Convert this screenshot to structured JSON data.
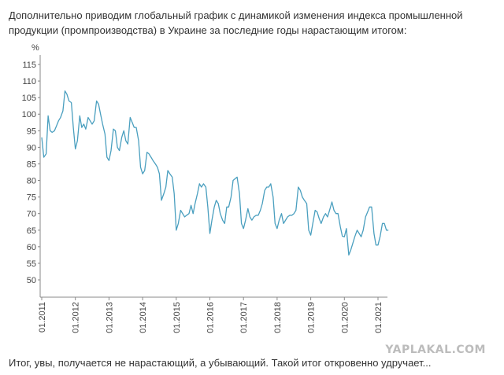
{
  "intro_text": "Дополнительно приводим глобальный график с динамикой изменения индекса промышленной продукции (промпроизводства) в Украине за последние годы нарастающим итогом:",
  "outro_text": "Итог, увы, получается не нарастающий, а убывающий. Такой итог откровенно удручает...",
  "watermark": "YAPLAKAL.COM",
  "colors": {
    "line": "#4a9fbf",
    "axis": "#888888",
    "text": "#444444"
  },
  "chart_data": {
    "type": "line",
    "ylabel": "%",
    "ylim": [
      45,
      116
    ],
    "yticks": [
      115,
      110,
      105,
      100,
      95,
      90,
      85,
      80,
      75,
      70,
      65,
      60,
      55,
      50
    ],
    "xlim": [
      2011.0,
      2021.55
    ],
    "xticks": [
      {
        "label": "01.2011",
        "x": 2011.0
      },
      {
        "label": "01.2012",
        "x": 2012.0
      },
      {
        "label": "01.2013",
        "x": 2013.0
      },
      {
        "label": "01.2014",
        "x": 2014.0
      },
      {
        "label": "01.2015",
        "x": 2015.0
      },
      {
        "label": "01.2016",
        "x": 2016.0
      },
      {
        "label": "01.2017",
        "x": 2017.0
      },
      {
        "label": "01.2018",
        "x": 2018.0
      },
      {
        "label": "01.2019",
        "x": 2019.0
      },
      {
        "label": "01.2020",
        "x": 2020.0
      },
      {
        "label": "01.2021",
        "x": 2021.0
      }
    ],
    "grid": false,
    "legend": "none",
    "series": [
      {
        "x": [
          2011.0,
          2011.06,
          2011.13,
          2011.19,
          2011.25,
          2011.31,
          2011.38,
          2011.44,
          2011.5,
          2011.56,
          2011.63,
          2011.69,
          2011.75,
          2011.81,
          2011.88,
          2011.94,
          2012.0,
          2012.06,
          2012.13,
          2012.19,
          2012.25,
          2012.31,
          2012.38,
          2012.44,
          2012.5,
          2012.56,
          2012.63,
          2012.69,
          2012.75,
          2012.81,
          2012.88,
          2012.94,
          2013.0,
          2013.06,
          2013.13,
          2013.19,
          2013.25,
          2013.31,
          2013.38,
          2013.44,
          2013.5,
          2013.56,
          2013.63,
          2013.69,
          2013.75,
          2013.81,
          2013.88,
          2013.94,
          2014.0,
          2014.06,
          2014.13,
          2014.19,
          2014.25,
          2014.31,
          2014.38,
          2014.44,
          2014.5,
          2014.56,
          2014.63,
          2014.69,
          2014.75,
          2014.81,
          2014.88,
          2014.94,
          2015.0,
          2015.06,
          2015.13,
          2015.19,
          2015.25,
          2015.31,
          2015.38,
          2015.44,
          2015.5,
          2015.56,
          2015.63,
          2015.69,
          2015.75,
          2015.81,
          2015.88,
          2015.94,
          2016.0,
          2016.06,
          2016.13,
          2016.19,
          2016.25,
          2016.31,
          2016.38,
          2016.44,
          2016.5,
          2016.56,
          2016.63,
          2016.69,
          2016.75,
          2016.81,
          2016.88,
          2016.94,
          2017.0,
          2017.06,
          2017.13,
          2017.19,
          2017.25,
          2017.31,
          2017.38,
          2017.44,
          2017.5,
          2017.56,
          2017.63,
          2017.69,
          2017.75,
          2017.81,
          2017.88,
          2017.94,
          2018.0,
          2018.06,
          2018.13,
          2018.19,
          2018.25,
          2018.31,
          2018.38,
          2018.44,
          2018.5,
          2018.56,
          2018.63,
          2018.69,
          2018.75,
          2018.81,
          2018.88,
          2018.94,
          2019.0,
          2019.06,
          2019.13,
          2019.19,
          2019.25,
          2019.31,
          2019.38,
          2019.44,
          2019.5,
          2019.56,
          2019.63,
          2019.69,
          2019.75,
          2019.81,
          2019.88,
          2019.94,
          2020.0,
          2020.06,
          2020.13,
          2020.19,
          2020.25,
          2020.31,
          2020.38,
          2020.44,
          2020.5,
          2020.56,
          2020.63,
          2020.69,
          2020.75,
          2020.81,
          2020.88,
          2020.94,
          2021.0,
          2021.06,
          2021.13,
          2021.19,
          2021.25,
          2021.31
        ],
        "y": [
          93,
          87,
          88,
          99.5,
          95,
          94.5,
          95,
          96.5,
          98,
          99,
          101,
          107,
          106,
          104,
          103.5,
          96,
          89.5,
          92,
          99.5,
          96,
          97,
          95.5,
          99,
          98,
          97,
          98,
          104,
          103,
          100,
          97,
          94,
          87,
          86,
          89,
          95.5,
          95,
          90,
          89,
          93,
          95,
          92,
          91,
          99,
          97.5,
          96,
          96,
          92,
          84,
          82,
          83,
          88.5,
          88,
          87,
          86,
          85,
          84,
          82,
          74,
          76,
          78,
          83,
          82,
          81,
          76,
          65,
          67,
          71,
          70,
          69,
          69.5,
          70,
          72.5,
          70,
          73,
          76,
          79,
          78,
          79,
          78,
          72,
          64,
          68,
          72,
          74,
          73,
          70,
          68,
          67,
          72,
          72,
          75,
          80,
          80.5,
          81,
          76,
          67,
          65.5,
          68,
          71.5,
          69,
          68,
          69,
          69.5,
          69.5,
          71,
          73,
          77,
          78,
          78,
          79,
          75,
          67,
          65.5,
          68,
          70,
          67,
          68,
          69,
          69.5,
          69.5,
          70,
          71,
          78,
          77,
          75,
          74,
          73,
          65,
          63.5,
          67,
          71,
          70.5,
          68.5,
          67,
          69,
          70,
          69,
          71,
          73.5,
          71,
          70,
          70,
          66,
          63.2,
          63,
          65.5,
          57.5,
          59,
          61,
          63,
          65,
          64,
          63,
          65,
          69,
          70.5,
          72,
          72,
          64,
          60.5,
          60.5,
          63,
          67,
          67,
          65,
          65
        ]
      }
    ]
  }
}
